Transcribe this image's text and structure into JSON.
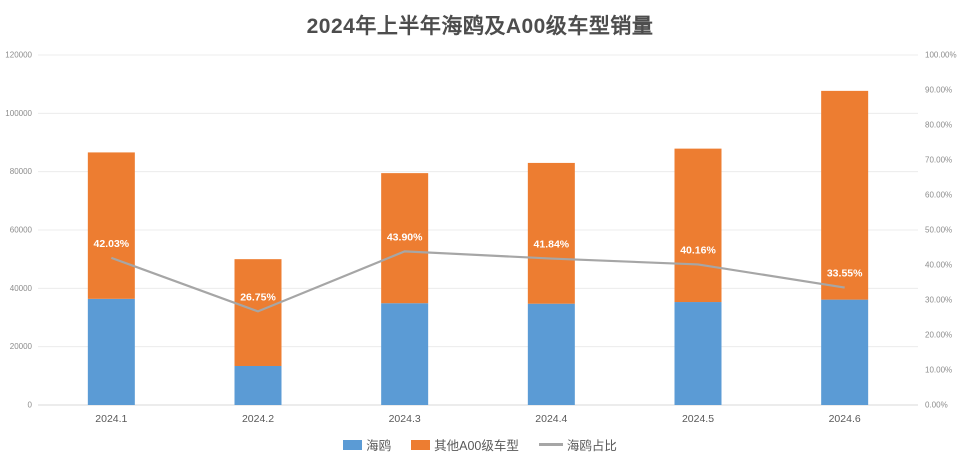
{
  "title": "2024年上半年海鸥及A00级车型销量",
  "colors": {
    "seagull_bar": "#5B9BD5",
    "other_bar": "#ED7D31",
    "ratio_line": "#A6A6A6",
    "grid": "#ECECEC",
    "axis_line": "#D9D9D9",
    "axis_text": "#8C8C8C",
    "x_axis_text": "#595959",
    "data_label_text": "#FFFFFF",
    "title_text": "#4D4D4D"
  },
  "chart_data": {
    "type": "bar",
    "subtype": "stacked-bars-with-line-overlay",
    "title": "2024年上半年海鸥及A00级车型销量",
    "categories": [
      "2024.1",
      "2024.2",
      "2024.3",
      "2024.4",
      "2024.5",
      "2024.6"
    ],
    "series": [
      {
        "name": "海鸥",
        "type": "bar",
        "stack": true,
        "axis": "left",
        "color": "#5B9BD5",
        "values": [
          36400,
          13375,
          34900,
          34730,
          35300,
          36130
        ]
      },
      {
        "name": "其他A00级车型",
        "type": "bar",
        "stack": true,
        "axis": "left",
        "color": "#ED7D31",
        "values": [
          50200,
          36625,
          44600,
          48270,
          52600,
          71570
        ]
      },
      {
        "name": "海鸥占比",
        "type": "line",
        "axis": "right",
        "color": "#A6A6A6",
        "values": [
          42.03,
          26.75,
          43.9,
          41.84,
          40.16,
          33.55
        ],
        "labels": [
          "42.03%",
          "26.75%",
          "43.90%",
          "41.84%",
          "40.16%",
          "33.55%"
        ]
      }
    ],
    "left_axis": {
      "min": 0,
      "max": 120000,
      "step": 20000,
      "ticks": [
        "0",
        "20000",
        "40000",
        "60000",
        "80000",
        "100000",
        "120000"
      ]
    },
    "right_axis": {
      "min": 0,
      "max": 100,
      "step": 10,
      "ticks": [
        "0.00%",
        "10.00%",
        "20.00%",
        "30.00%",
        "40.00%",
        "50.00%",
        "60.00%",
        "70.00%",
        "80.00%",
        "90.00%",
        "100.00%"
      ]
    },
    "grid": true,
    "legend_position": "bottom"
  },
  "legend": {
    "items": [
      {
        "label": "海鸥",
        "swatch": "blue-rect"
      },
      {
        "label": "其他A00级车型",
        "swatch": "orange-rect"
      },
      {
        "label": "海鸥占比",
        "swatch": "gray-line"
      }
    ]
  }
}
